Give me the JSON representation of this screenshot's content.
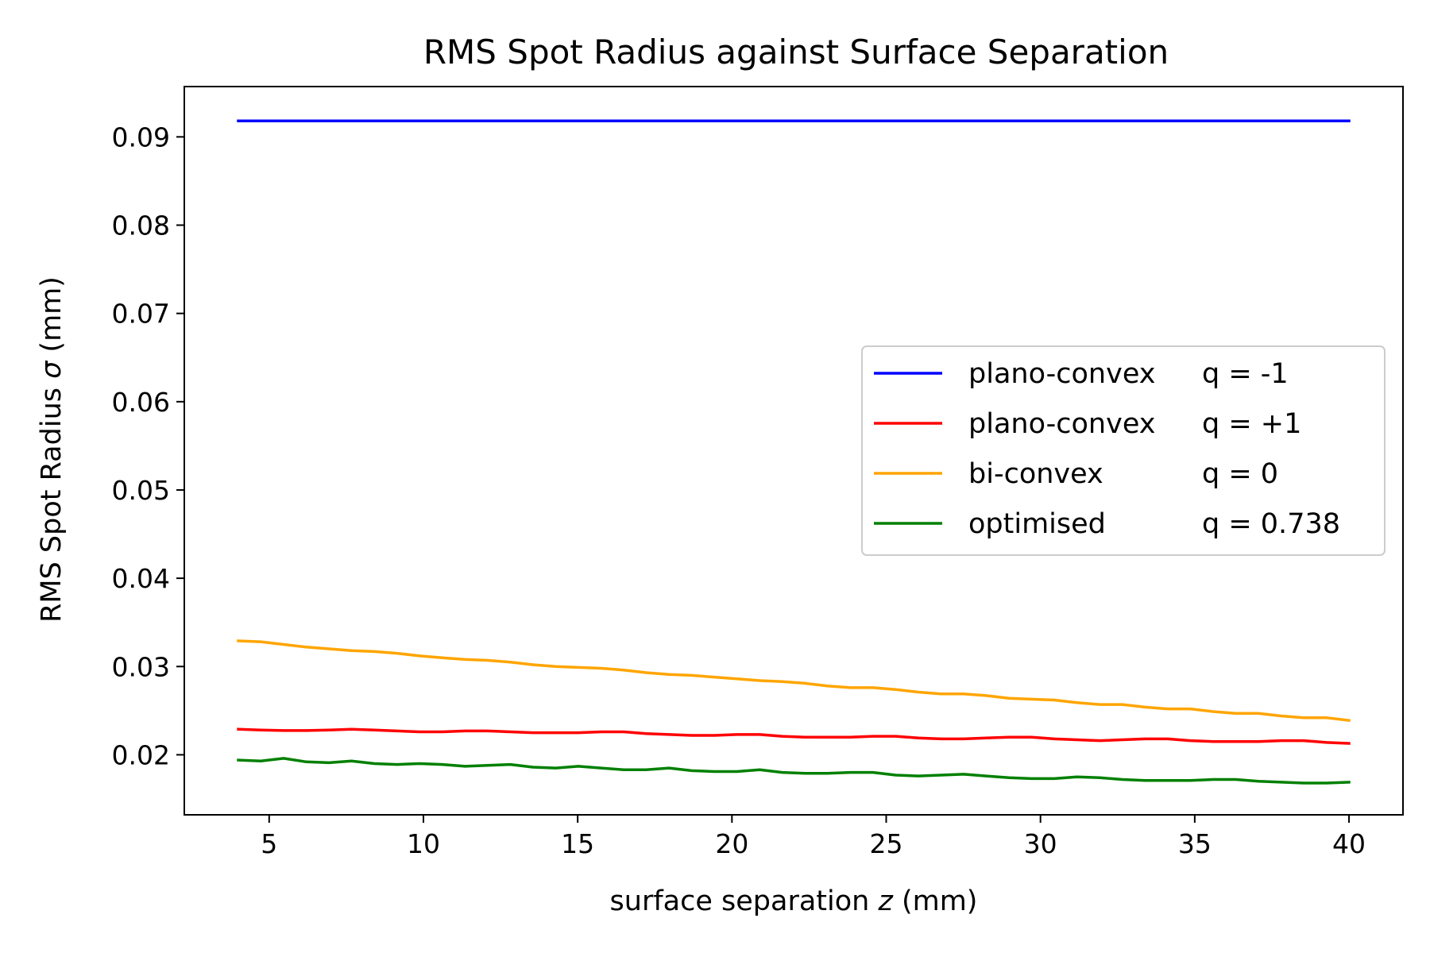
{
  "chart_data": {
    "type": "line",
    "title": "RMS Spot Radius against Surface Separation",
    "xlabel_prefix": "surface separation ",
    "xlabel_var": "z",
    "xlabel_suffix": " (mm)",
    "ylabel_prefix": "RMS Spot Radius ",
    "ylabel_var": "σ",
    "ylabel_suffix": " (mm)",
    "xlim": [
      2.25,
      41.75
    ],
    "ylim": [
      0.0132,
      0.0957
    ],
    "xticks": [
      5,
      10,
      15,
      20,
      25,
      30,
      35,
      40
    ],
    "xtick_labels": [
      "5",
      "10",
      "15",
      "20",
      "25",
      "30",
      "35",
      "40"
    ],
    "yticks": [
      0.02,
      0.03,
      0.04,
      0.05,
      0.06,
      0.07,
      0.08,
      0.09
    ],
    "ytick_labels": [
      "0.02",
      "0.03",
      "0.04",
      "0.05",
      "0.06",
      "0.07",
      "0.08",
      "0.09"
    ],
    "grid": false,
    "legend_position": "center-right",
    "x": [
      4.0,
      4.73,
      5.47,
      6.2,
      6.94,
      7.67,
      8.41,
      9.14,
      9.88,
      10.61,
      11.35,
      12.08,
      12.82,
      13.55,
      14.29,
      15.02,
      15.76,
      16.49,
      17.22,
      17.96,
      18.69,
      19.43,
      20.16,
      20.9,
      21.63,
      22.37,
      23.1,
      23.84,
      24.57,
      25.31,
      26.04,
      26.78,
      27.51,
      28.24,
      28.98,
      29.71,
      30.45,
      31.18,
      31.92,
      32.65,
      33.39,
      34.12,
      34.86,
      35.59,
      36.33,
      37.06,
      37.8,
      38.53,
      39.27,
      40.0
    ],
    "series": [
      {
        "name": "plano-convex q = -1",
        "legend_desc": "plano-convex",
        "legend_q": "q = -1",
        "color": "#0000ff",
        "values": [
          0.0918,
          0.0918,
          0.0918,
          0.0918,
          0.0918,
          0.0918,
          0.0918,
          0.0918,
          0.0918,
          0.0918,
          0.0918,
          0.0918,
          0.0918,
          0.0918,
          0.0918,
          0.0918,
          0.0918,
          0.0918,
          0.0918,
          0.0918,
          0.0918,
          0.0918,
          0.0918,
          0.0918,
          0.0918,
          0.0918,
          0.0918,
          0.0918,
          0.0918,
          0.0918,
          0.0918,
          0.0918,
          0.0918,
          0.0918,
          0.0918,
          0.0918,
          0.0918,
          0.0918,
          0.0918,
          0.0918,
          0.0918,
          0.0918,
          0.0918,
          0.0918,
          0.0918,
          0.0918,
          0.0918,
          0.0918,
          0.0918,
          0.0918
        ]
      },
      {
        "name": "plano-convex q = +1",
        "legend_desc": "plano-convex",
        "legend_q": "q = +1",
        "color": "#ff0000",
        "values": [
          0.0229,
          0.0228,
          0.02275,
          0.02275,
          0.0228,
          0.0229,
          0.0228,
          0.0227,
          0.0226,
          0.0226,
          0.0227,
          0.0227,
          0.0226,
          0.0225,
          0.0225,
          0.0225,
          0.0226,
          0.0226,
          0.0224,
          0.0223,
          0.0222,
          0.0222,
          0.0223,
          0.0223,
          0.0221,
          0.022,
          0.022,
          0.022,
          0.0221,
          0.0221,
          0.0219,
          0.0218,
          0.0218,
          0.0219,
          0.022,
          0.022,
          0.0218,
          0.0217,
          0.0216,
          0.0217,
          0.0218,
          0.0218,
          0.0216,
          0.0215,
          0.0215,
          0.0215,
          0.0216,
          0.0216,
          0.0214,
          0.0213
        ]
      },
      {
        "name": "bi-convex q = 0",
        "legend_desc": "bi-convex",
        "legend_q": "q = 0",
        "color": "#ffa500",
        "values": [
          0.0329,
          0.0328,
          0.0325,
          0.0322,
          0.032,
          0.0318,
          0.0317,
          0.0315,
          0.0312,
          0.031,
          0.0308,
          0.0307,
          0.0305,
          0.0302,
          0.03,
          0.0299,
          0.0298,
          0.0296,
          0.0293,
          0.0291,
          0.029,
          0.0288,
          0.0286,
          0.0284,
          0.0283,
          0.0281,
          0.0278,
          0.0276,
          0.0276,
          0.0274,
          0.0271,
          0.0269,
          0.0269,
          0.0267,
          0.0264,
          0.0263,
          0.0262,
          0.0259,
          0.0257,
          0.0257,
          0.0254,
          0.0252,
          0.0252,
          0.0249,
          0.0247,
          0.0247,
          0.0244,
          0.0242,
          0.0242,
          0.0239
        ]
      },
      {
        "name": "optimised q = 0.738",
        "legend_desc": "optimised",
        "legend_q": "q = 0.738",
        "color": "#008000",
        "values": [
          0.0194,
          0.0193,
          0.0196,
          0.0192,
          0.0191,
          0.0193,
          0.019,
          0.0189,
          0.019,
          0.0189,
          0.0187,
          0.0188,
          0.0189,
          0.0186,
          0.0185,
          0.0187,
          0.0185,
          0.0183,
          0.0183,
          0.0185,
          0.0182,
          0.0181,
          0.0181,
          0.0183,
          0.018,
          0.0179,
          0.0179,
          0.018,
          0.018,
          0.0177,
          0.0176,
          0.0177,
          0.0178,
          0.0176,
          0.0174,
          0.0173,
          0.0173,
          0.0175,
          0.0174,
          0.0172,
          0.0171,
          0.0171,
          0.0171,
          0.0172,
          0.0172,
          0.017,
          0.0169,
          0.0168,
          0.0168,
          0.0169
        ]
      }
    ]
  }
}
